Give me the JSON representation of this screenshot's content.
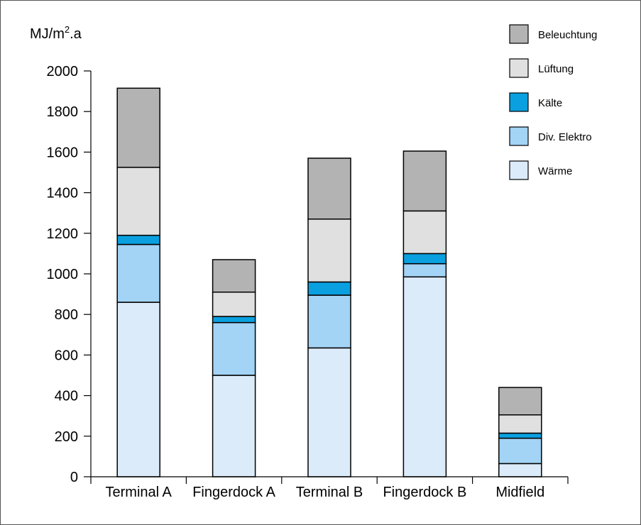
{
  "chart_data": {
    "type": "bar",
    "stacked": true,
    "ylabel_main": "MJ/m",
    "ylabel_sup": "2",
    "ylabel_tail": ".a",
    "ylim": [
      0,
      2000
    ],
    "yticks": [
      0,
      200,
      400,
      600,
      800,
      1000,
      1200,
      1400,
      1600,
      1800,
      2000
    ],
    "ytick_labels": [
      "0",
      "200",
      "400",
      "600",
      "800",
      "1000",
      "1200",
      "1400",
      "1600",
      "1800",
      "2000"
    ],
    "grid": false,
    "legend_position": "top-right",
    "categories": [
      "Terminal A",
      "Fingerdock A",
      "Terminal B",
      "Fingerdock B",
      "Midfield"
    ],
    "series": [
      {
        "name": "Wärme",
        "color": "#dcebfa",
        "values": [
          860,
          500,
          635,
          985,
          65
        ]
      },
      {
        "name": "Div. Elektro",
        "color": "#a3d3f5",
        "values": [
          285,
          260,
          260,
          65,
          125
        ]
      },
      {
        "name": "Kälte",
        "color": "#0aa0e0",
        "values": [
          45,
          30,
          65,
          50,
          25
        ]
      },
      {
        "name": "Lüftung",
        "color": "#e0e0e0",
        "values": [
          335,
          120,
          310,
          210,
          90
        ]
      },
      {
        "name": "Beleuchtung",
        "color": "#b3b3b3",
        "values": [
          390,
          160,
          300,
          295,
          135
        ]
      }
    ],
    "legend_order": [
      "Beleuchtung",
      "Lüftung",
      "Kälte",
      "Div. Elektro",
      "Wärme"
    ]
  }
}
